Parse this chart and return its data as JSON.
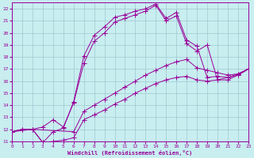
{
  "xlabel": "Windchill (Refroidissement éolien,°C)",
  "bg_color": "#c8eef0",
  "grid_color": "#9fc8d0",
  "line_color": "#990099",
  "xlim": [
    0,
    23
  ],
  "ylim": [
    11,
    22.5
  ],
  "xticks": [
    0,
    1,
    2,
    3,
    4,
    5,
    6,
    7,
    8,
    9,
    10,
    11,
    12,
    13,
    14,
    15,
    16,
    17,
    18,
    19,
    20,
    21,
    22,
    23
  ],
  "yticks": [
    11,
    12,
    13,
    14,
    15,
    16,
    17,
    18,
    19,
    20,
    21,
    22
  ],
  "curve1_x": [
    0,
    1,
    2,
    3,
    4,
    5,
    6,
    7,
    8,
    9,
    10,
    11,
    12,
    13,
    14,
    15,
    16,
    17,
    18,
    19,
    20,
    21,
    22,
    23
  ],
  "curve1_y": [
    11.8,
    12.0,
    12.0,
    10.9,
    11.8,
    12.1,
    14.3,
    18.1,
    19.8,
    20.5,
    21.3,
    21.5,
    21.8,
    22.0,
    22.4,
    21.2,
    21.7,
    19.4,
    18.9,
    16.3,
    16.4,
    16.3,
    16.6,
    17.0
  ],
  "curve2_x": [
    0,
    2,
    3,
    4,
    5,
    6,
    7,
    8,
    9,
    10,
    11,
    12,
    13,
    14,
    15,
    16,
    17,
    18,
    19,
    20,
    21,
    22,
    23
  ],
  "curve2_y": [
    11.8,
    12.0,
    12.2,
    12.8,
    12.2,
    14.2,
    17.5,
    19.3,
    20.0,
    20.9,
    21.2,
    21.5,
    21.8,
    22.3,
    21.0,
    21.4,
    19.1,
    18.5,
    19.0,
    16.1,
    16.1,
    16.5,
    17.0
  ],
  "curve3_x": [
    0,
    1,
    2,
    6,
    7,
    8,
    9,
    10,
    11,
    12,
    13,
    14,
    15,
    16,
    17,
    18,
    19,
    20,
    21,
    22,
    23
  ],
  "curve3_y": [
    11.8,
    12.0,
    12.0,
    11.8,
    13.5,
    14.0,
    14.5,
    15.0,
    15.5,
    16.0,
    16.5,
    16.9,
    17.3,
    17.6,
    17.8,
    17.1,
    16.9,
    16.7,
    16.5,
    16.6,
    17.0
  ],
  "curve4_x": [
    0,
    1,
    2,
    3,
    4,
    5,
    6,
    7,
    8,
    9,
    10,
    11,
    12,
    13,
    14,
    15,
    16,
    17,
    18,
    19,
    20,
    21,
    22,
    23
  ],
  "curve4_y": [
    11.8,
    12.0,
    12.0,
    10.9,
    11.0,
    11.1,
    11.3,
    12.8,
    13.2,
    13.6,
    14.1,
    14.5,
    15.0,
    15.4,
    15.8,
    16.1,
    16.3,
    16.4,
    16.1,
    16.0,
    16.1,
    16.3,
    16.5,
    17.0
  ]
}
